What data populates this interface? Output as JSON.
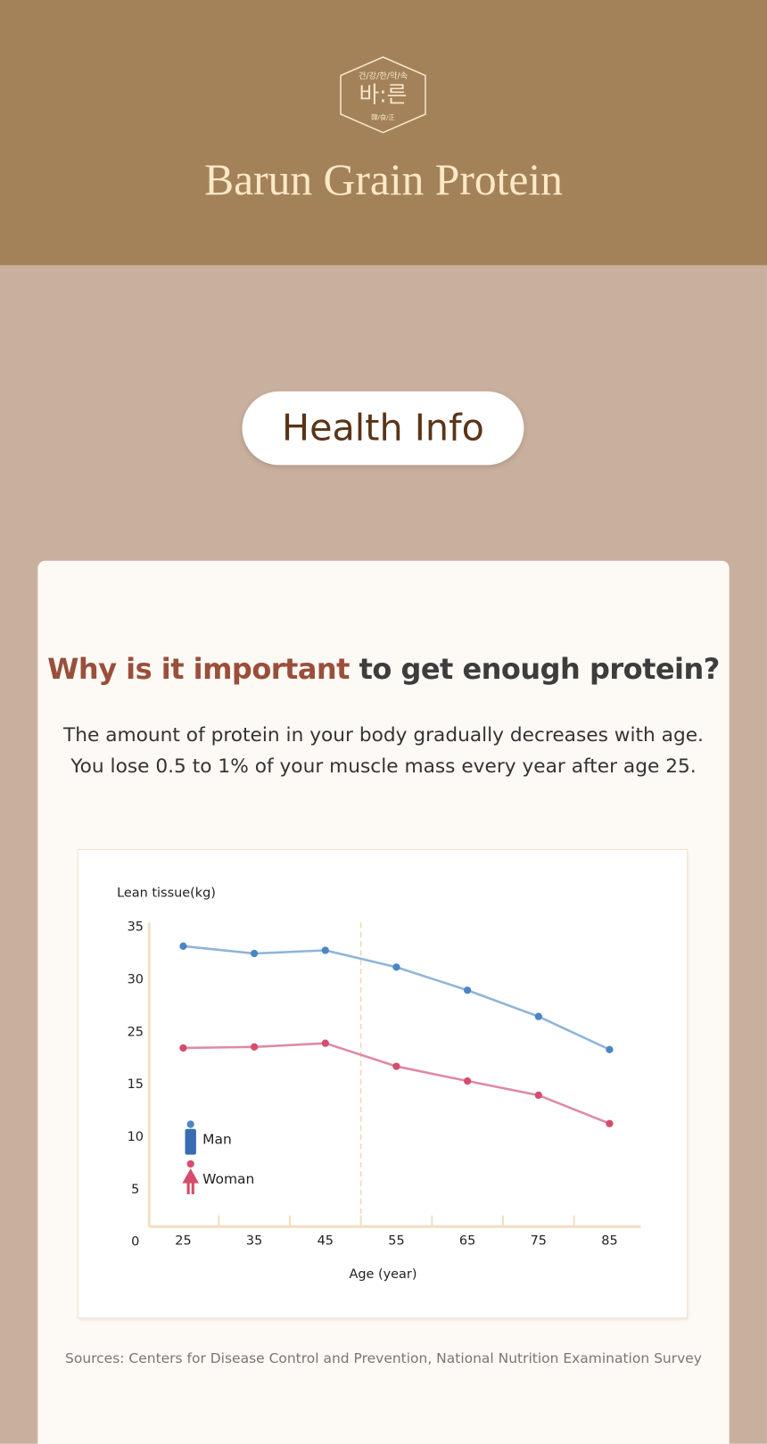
{
  "header": {
    "logo": {
      "top": "건/강/한/약/속",
      "main": "바:른",
      "bottom": "韓/食/正"
    },
    "title": "Barun Grain Protein"
  },
  "section": {
    "pill": "Health Info"
  },
  "card": {
    "heading": {
      "highlight": "Why is it important",
      "rest": " to get enough protein?"
    },
    "paragraph": [
      "The amount of protein in your body gradually decreases with age.",
      "You lose 0.5 to 1% of your muscle mass every year after age 25."
    ],
    "sources": "Sources: Centers for Disease Control and Prevention, National Nutrition Examination Survey"
  },
  "chart_data": {
    "type": "line",
    "y_label": "Lean tissue(kg)",
    "x_label": "Age (year)",
    "categories": [
      "25",
      "35",
      "45",
      "55",
      "65",
      "75",
      "85"
    ],
    "series": [
      {
        "name": "Man",
        "color": "#8fb5d8",
        "point_color": "#4a86c5",
        "values": [
          33.2,
          32.5,
          32.8,
          31.2,
          29.0,
          26.5,
          21.7
        ]
      },
      {
        "name": "Woman",
        "color": "#e08aa2",
        "point_color": "#d44d6d",
        "values": [
          22.0,
          22.2,
          22.9,
          18.5,
          15.7,
          14.0,
          11.3
        ]
      }
    ],
    "ylim": [
      0,
      35
    ],
    "yticks": [
      0,
      5,
      10,
      15,
      25,
      30,
      35
    ],
    "grid": false
  }
}
